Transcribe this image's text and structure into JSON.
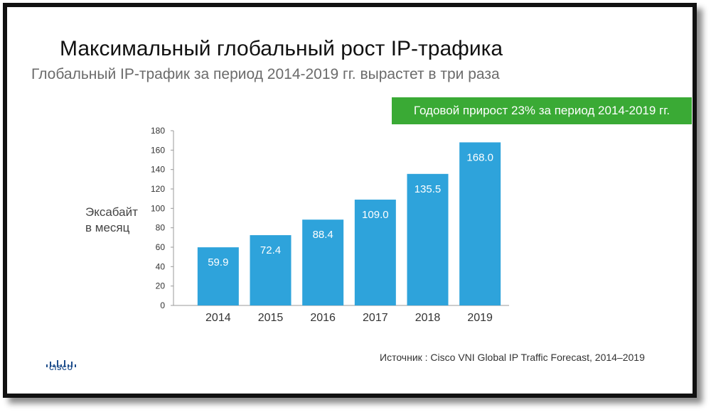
{
  "brand": {
    "logo_text": "CISCO",
    "color": "#1f4e8c"
  },
  "colors": {
    "bar": "#2ea3db",
    "banner": "#3aaa35",
    "bar_label": "#ffffff"
  },
  "title": "Максимальный глобальный рост IP-трафика",
  "subtitle": "Глобальный IP-трафик за период 2014-2019 гг. вырастет в три раза",
  "banner": "Годовой прирост 23% за период 2014-2019 гг.",
  "source": "Источник : Cisco VNI Global IP Traffic Forecast, 2014–2019",
  "chart_data": {
    "type": "bar",
    "title": "",
    "ylabel_lines": [
      "Эксабайт",
      "в месяц"
    ],
    "categories": [
      "2014",
      "2015",
      "2016",
      "2017",
      "2018",
      "2019"
    ],
    "values": [
      59.9,
      72.4,
      88.4,
      109.0,
      135.5,
      168.0
    ],
    "value_labels": [
      "59.9",
      "72.4",
      "88.4",
      "109.0",
      "135.5",
      "168.0"
    ],
    "ylim": [
      0,
      180
    ],
    "yticks": [
      0,
      20,
      40,
      60,
      80,
      100,
      120,
      140,
      160,
      180
    ],
    "grid": false,
    "legend": "none"
  }
}
